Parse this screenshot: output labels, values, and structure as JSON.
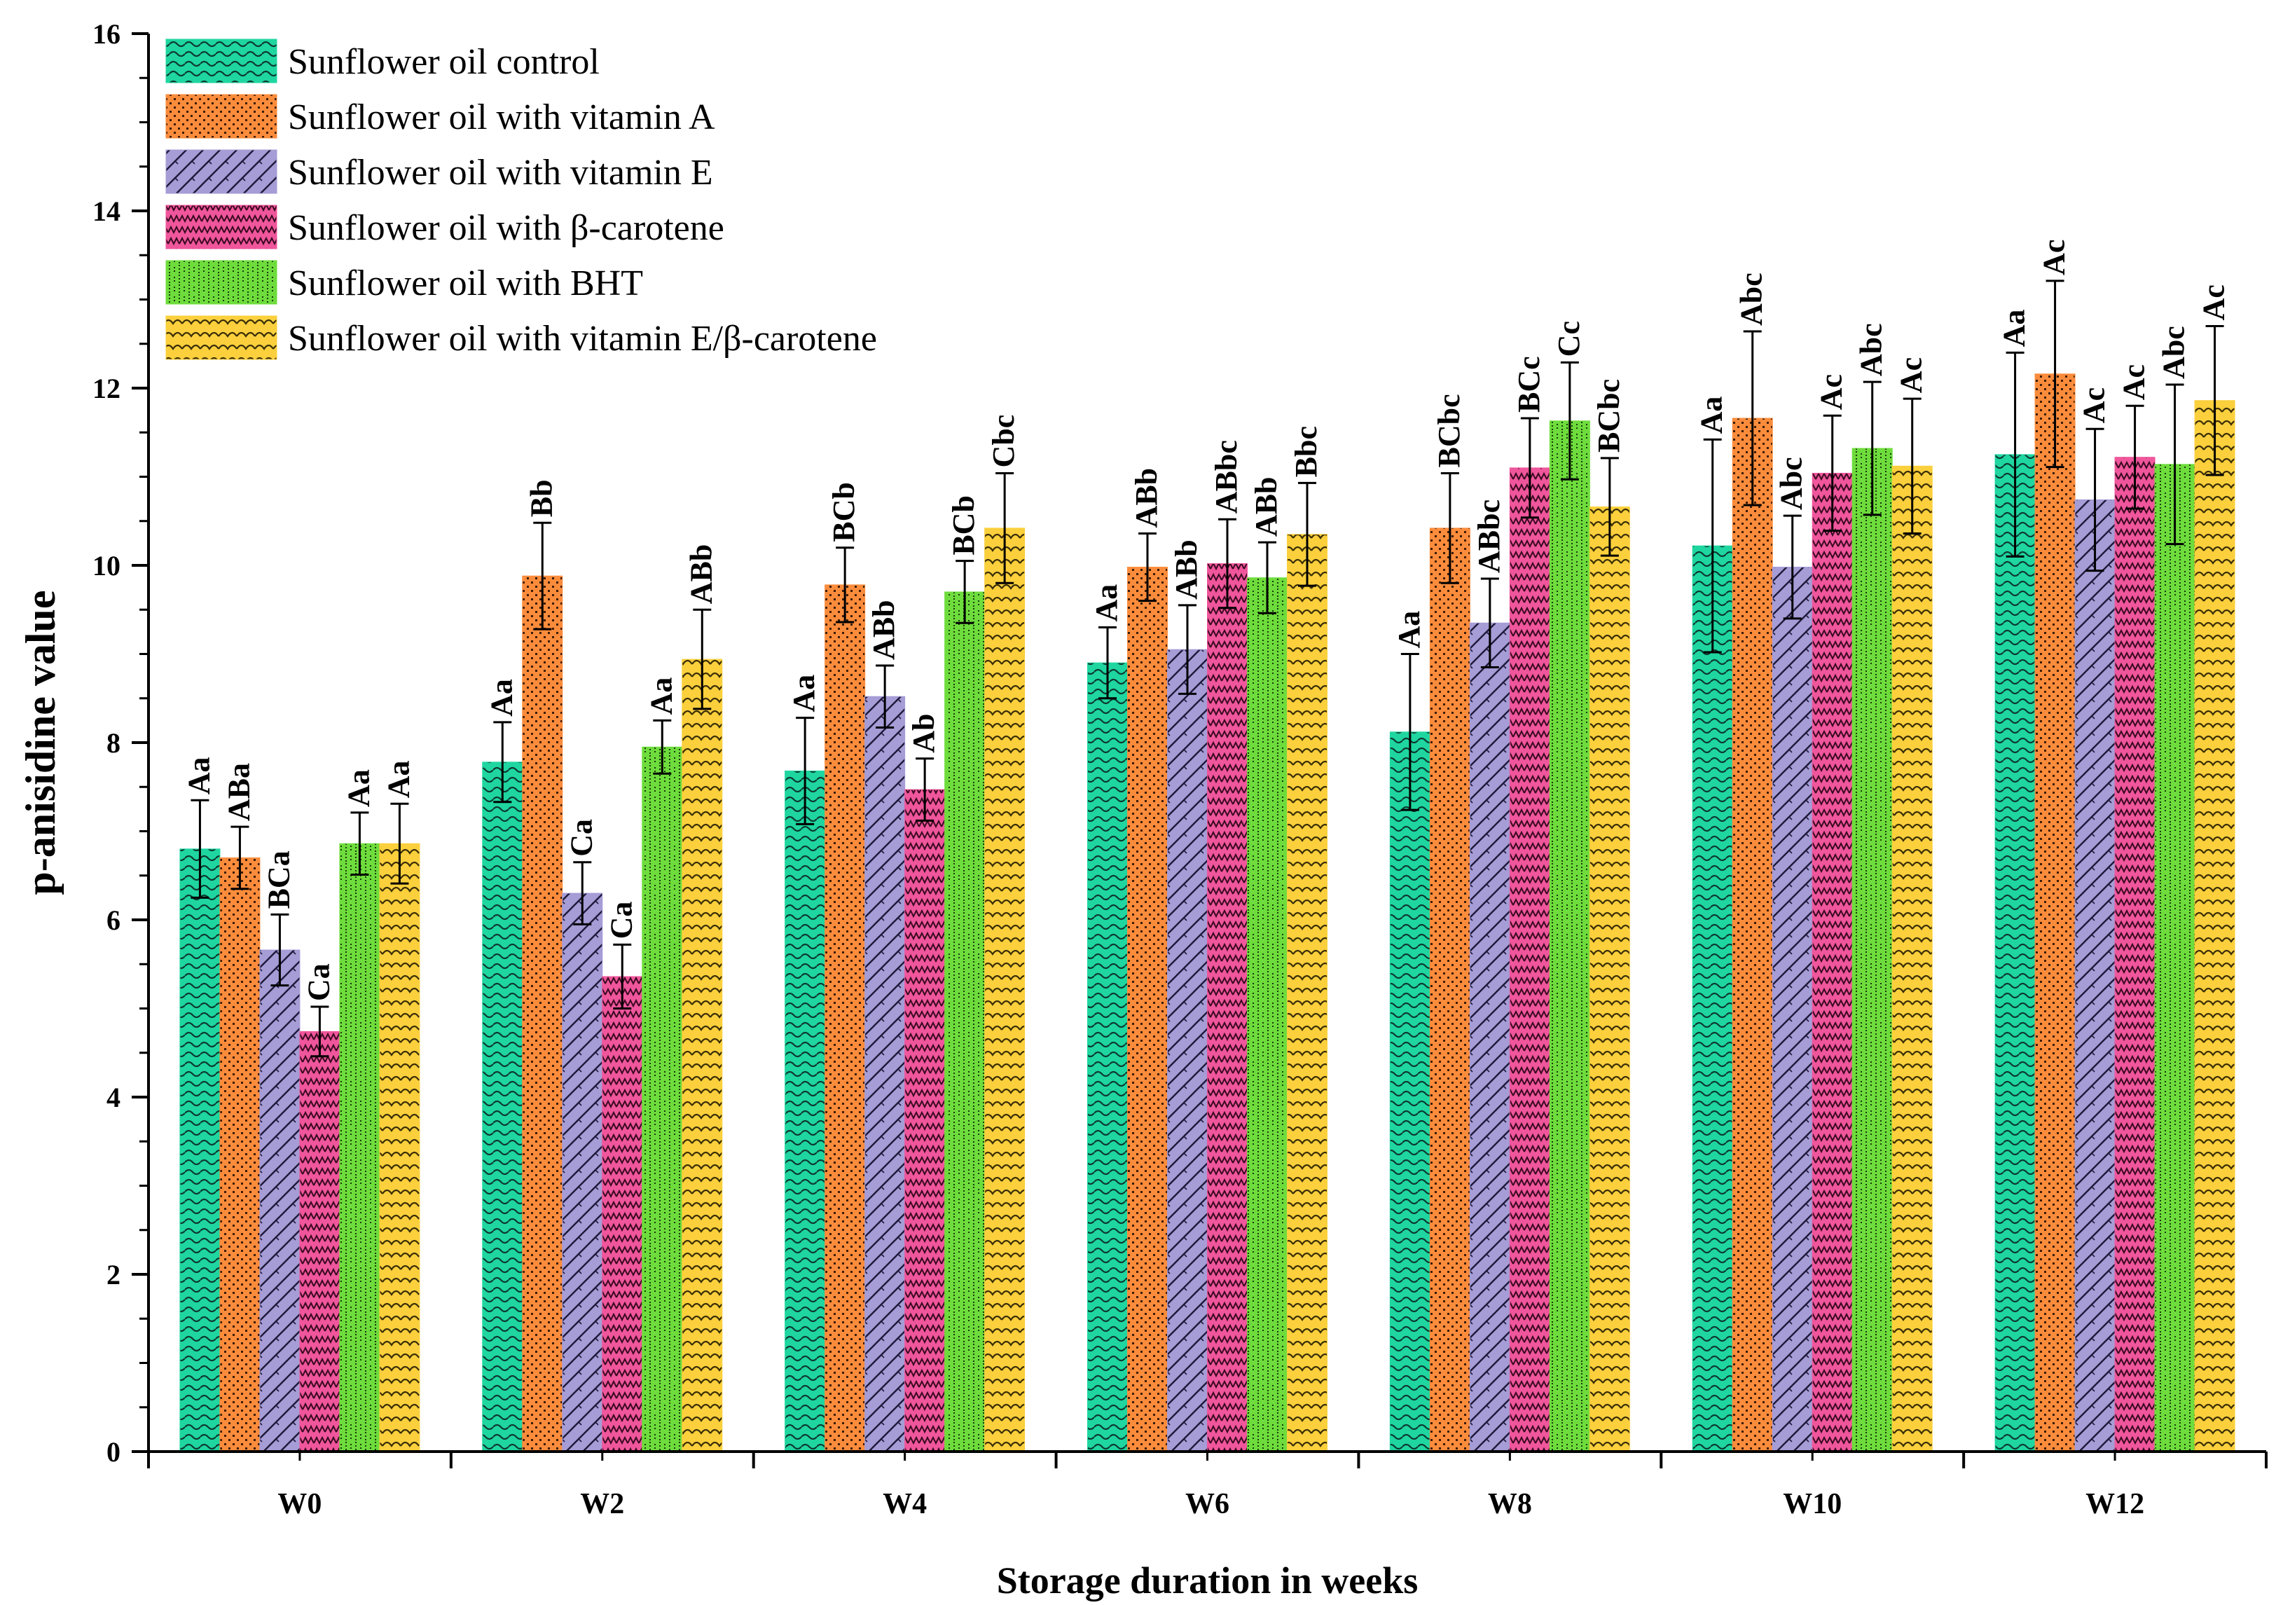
{
  "chart_data": {
    "type": "bar",
    "title": "",
    "xlabel": "Storage duration in weeks",
    "ylabel": "p-anisidine value",
    "ylim": [
      0,
      16
    ],
    "yticks": [
      0,
      2,
      4,
      6,
      8,
      10,
      12,
      14,
      16
    ],
    "categories": [
      "W0",
      "W2",
      "W4",
      "W6",
      "W8",
      "W10",
      "W12"
    ],
    "legend_position": "top-left",
    "series": [
      {
        "name": "Sunflower oil control",
        "color": "#1fd6a0",
        "pattern": "waves",
        "values": [
          6.8,
          7.78,
          7.68,
          8.9,
          8.12,
          10.22,
          11.25
        ],
        "errors": [
          0.55,
          0.45,
          0.6,
          0.4,
          0.88,
          1.2,
          1.15
        ],
        "labels": [
          "Aa",
          "Aa",
          "Aa",
          "Aa",
          "Aa",
          "Aa",
          "Aa"
        ]
      },
      {
        "name": "Sunflower oil with vitamin A",
        "color": "#fb8c3c",
        "pattern": "dots",
        "values": [
          6.7,
          9.88,
          9.78,
          9.98,
          10.42,
          11.66,
          12.16
        ],
        "errors": [
          0.35,
          0.6,
          0.42,
          0.38,
          0.62,
          0.98,
          1.05
        ],
        "labels": [
          "ABa",
          "Bb",
          "BCb",
          "ABb",
          "BCbc",
          "Abc",
          "Ac"
        ]
      },
      {
        "name": "Sunflower oil with vitamin E",
        "color": "#a69cd6",
        "pattern": "diagonal",
        "values": [
          5.66,
          6.3,
          8.52,
          9.05,
          9.35,
          9.98,
          10.74
        ],
        "errors": [
          0.4,
          0.35,
          0.35,
          0.5,
          0.5,
          0.58,
          0.8
        ],
        "labels": [
          "BCa",
          "Ca",
          "ABb",
          "ABb",
          "ABbc",
          "Abc",
          "Ac"
        ]
      },
      {
        "name": "Sunflower oil with β-carotene",
        "color": "#f0569c",
        "pattern": "zigzag",
        "values": [
          4.74,
          5.36,
          7.47,
          10.02,
          11.1,
          11.04,
          11.22
        ],
        "errors": [
          0.28,
          0.36,
          0.35,
          0.5,
          0.56,
          0.65,
          0.58
        ],
        "labels": [
          "Ca",
          "Ca",
          "Ab",
          "ABbc",
          "BCc",
          "Ac",
          "Ac"
        ]
      },
      {
        "name": "Sunflower oil with BHT",
        "color": "#6edc3c",
        "pattern": "grid",
        "values": [
          6.86,
          7.95,
          9.7,
          9.86,
          11.63,
          11.32,
          11.14
        ],
        "errors": [
          0.35,
          0.3,
          0.35,
          0.4,
          0.66,
          0.75,
          0.9
        ],
        "labels": [
          "Aa",
          "Aa",
          "BCb",
          "ABb",
          "Cc",
          "Abc",
          "Abc"
        ]
      },
      {
        "name": "Sunflower oil with vitamin E/β-carotene",
        "color": "#fbd03c",
        "pattern": "scallop",
        "values": [
          6.86,
          8.94,
          10.42,
          10.35,
          10.66,
          11.12,
          11.86
        ],
        "errors": [
          0.45,
          0.56,
          0.62,
          0.58,
          0.55,
          0.76,
          0.84
        ],
        "labels": [
          "Aa",
          "ABb",
          "Cbc",
          "Bbc",
          "BCbc",
          "Ac",
          "Ac"
        ]
      }
    ]
  }
}
